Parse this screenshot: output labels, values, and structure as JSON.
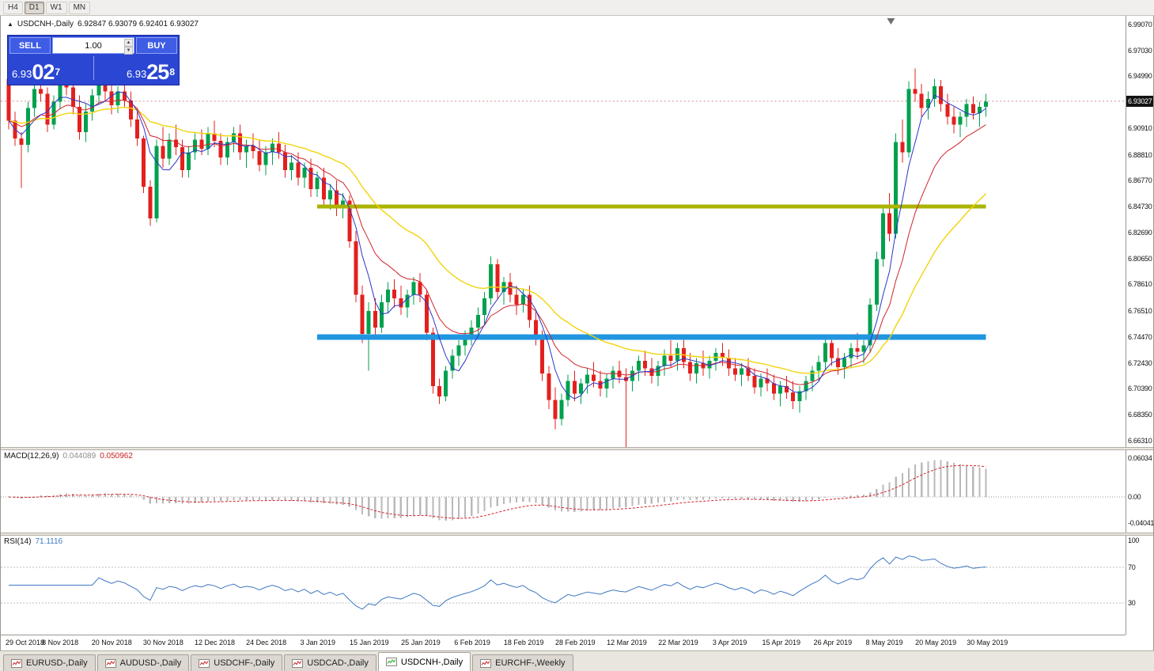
{
  "toolbar": {
    "timeframes": [
      "H4",
      "D1",
      "W1",
      "MN"
    ],
    "active_timeframe": "D1"
  },
  "chart": {
    "title": "USDCNH-,Daily",
    "ohlc": "6.92847 6.93079 6.92401 6.93027",
    "current_price": "6.93027",
    "price_axis_labels": [
      {
        "label": "6.99070",
        "value": 6.9907
      },
      {
        "label": "6.97030",
        "value": 6.9703
      },
      {
        "label": "6.94990",
        "value": 6.9499
      },
      {
        "label": "6.90910",
        "value": 6.9091
      },
      {
        "label": "6.88810",
        "value": 6.8881
      },
      {
        "label": "6.86770",
        "value": 6.8677
      },
      {
        "label": "6.84730",
        "value": 6.8473
      },
      {
        "label": "6.82690",
        "value": 6.8269
      },
      {
        "label": "6.80650",
        "value": 6.8065
      },
      {
        "label": "6.78610",
        "value": 6.7861
      },
      {
        "label": "6.76510",
        "value": 6.7651
      },
      {
        "label": "6.74470",
        "value": 6.7447
      },
      {
        "label": "6.72430",
        "value": 6.7243
      },
      {
        "label": "6.70390",
        "value": 6.7039
      },
      {
        "label": "6.68350",
        "value": 6.6835
      },
      {
        "label": "6.66310",
        "value": 6.6631
      }
    ]
  },
  "trade_panel": {
    "sell_label": "SELL",
    "buy_label": "BUY",
    "volume": "1.00",
    "sell_base": "6.93",
    "sell_pips": "02",
    "sell_point": "7",
    "buy_base": "6.93",
    "buy_pips": "25",
    "buy_point": "8"
  },
  "indicators": {
    "macd": {
      "name": "MACD(12,26,9)",
      "value1": "0.044089",
      "value2": "0.050962",
      "axis": [
        {
          "label": "0.06034",
          "value": 0.06034
        },
        {
          "label": "0.00",
          "value": 0
        },
        {
          "label": "-0.04041",
          "value": -0.04041
        }
      ]
    },
    "rsi": {
      "name": "RSI(14)",
      "value": "71.1116",
      "axis": [
        {
          "label": "100",
          "value": 100
        },
        {
          "label": "70",
          "value": 70
        },
        {
          "label": "30",
          "value": 30
        }
      ],
      "levels": [
        70,
        30
      ]
    }
  },
  "tabs": [
    {
      "label": "EURUSD-,Daily",
      "active": false
    },
    {
      "label": "AUDUSD-,Daily",
      "active": false
    },
    {
      "label": "USDCHF-,Daily",
      "active": false
    },
    {
      "label": "USDCAD-,Daily",
      "active": false
    },
    {
      "label": "USDCNH-,Daily",
      "active": true
    },
    {
      "label": "EURCHF-,Weekly",
      "active": false
    }
  ],
  "chart_data": {
    "type": "candlestick",
    "symbol": "USDCNH-",
    "timeframe": "Daily",
    "price_range": [
      6.658,
      6.9975
    ],
    "macd_range": [
      -0.048,
      0.0655
    ],
    "rsi_range": [
      0,
      100
    ],
    "current_price": 6.93027,
    "date_ticks": [
      {
        "label": "29 Oct 2018",
        "index": 0
      },
      {
        "label": "8 Nov 2018",
        "index": 8
      },
      {
        "label": "20 Nov 2018",
        "index": 16
      },
      {
        "label": "30 Nov 2018",
        "index": 24
      },
      {
        "label": "12 Dec 2018",
        "index": 32
      },
      {
        "label": "24 Dec 2018",
        "index": 40
      },
      {
        "label": "3 Jan 2019",
        "index": 48
      },
      {
        "label": "15 Jan 2019",
        "index": 56
      },
      {
        "label": "25 Jan 2019",
        "index": 64
      },
      {
        "label": "6 Feb 2019",
        "index": 72
      },
      {
        "label": "18 Feb 2019",
        "index": 80
      },
      {
        "label": "28 Feb 2019",
        "index": 88
      },
      {
        "label": "12 Mar 2019",
        "index": 96
      },
      {
        "label": "22 Mar 2019",
        "index": 104
      },
      {
        "label": "3 Apr 2019",
        "index": 112
      },
      {
        "label": "15 Apr 2019",
        "index": 120
      },
      {
        "label": "26 Apr 2019",
        "index": 128
      },
      {
        "label": "8 May 2019",
        "index": 136
      },
      {
        "label": "20 May 2019",
        "index": 144
      },
      {
        "label": "30 May 2019",
        "index": 152
      }
    ],
    "moving_averages": [
      {
        "name": "slow",
        "type": "ema",
        "period": 30,
        "color": "#f2d40b",
        "width": 1.4
      },
      {
        "name": "medium",
        "type": "ema",
        "period": 12,
        "color": "#d2242a",
        "width": 1
      },
      {
        "name": "fast",
        "type": "sma",
        "period": 5,
        "color": "#2b36c9",
        "width": 1
      }
    ],
    "hlines": [
      {
        "price": 6.8473,
        "from_index": 48,
        "to_index": 152,
        "color": "#aab400",
        "width": 5
      },
      {
        "price": 6.7447,
        "from_index": 48,
        "to_index": 152,
        "color": "#2196e0",
        "width": 7
      }
    ],
    "candles": [
      [
        6.948,
        6.952,
        6.908,
        6.915
      ],
      [
        6.915,
        6.922,
        6.895,
        6.901
      ],
      [
        6.901,
        6.906,
        6.862,
        6.896
      ],
      [
        6.896,
        6.93,
        6.89,
        6.925
      ],
      [
        6.925,
        6.945,
        6.918,
        6.94
      ],
      [
        6.94,
        6.955,
        6.93,
        6.936
      ],
      [
        6.936,
        6.941,
        6.906,
        6.912
      ],
      [
        6.912,
        6.935,
        6.908,
        6.93
      ],
      [
        6.93,
        6.952,
        6.924,
        6.948
      ],
      [
        6.948,
        6.958,
        6.935,
        6.941
      ],
      [
        6.941,
        6.95,
        6.92,
        6.926
      ],
      [
        6.926,
        6.935,
        6.9,
        6.906
      ],
      [
        6.906,
        6.928,
        6.898,
        6.922
      ],
      [
        6.922,
        6.94,
        6.915,
        6.935
      ],
      [
        6.935,
        6.955,
        6.928,
        6.95
      ],
      [
        6.95,
        6.957,
        6.93,
        6.938
      ],
      [
        6.938,
        6.945,
        6.92,
        6.927
      ],
      [
        6.927,
        6.942,
        6.921,
        6.938
      ],
      [
        6.938,
        6.948,
        6.925,
        6.931
      ],
      [
        6.931,
        6.938,
        6.91,
        6.916
      ],
      [
        6.916,
        6.925,
        6.895,
        6.901
      ],
      [
        6.901,
        6.903,
        6.858,
        6.863
      ],
      [
        6.863,
        6.868,
        6.832,
        6.838
      ],
      [
        6.838,
        6.9,
        6.835,
        6.895
      ],
      [
        6.895,
        6.91,
        6.878,
        6.885
      ],
      [
        6.885,
        6.905,
        6.88,
        6.9
      ],
      [
        6.9,
        6.912,
        6.888,
        6.894
      ],
      [
        6.894,
        6.9,
        6.87,
        6.876
      ],
      [
        6.876,
        6.895,
        6.87,
        6.89
      ],
      [
        6.89,
        6.905,
        6.884,
        6.9
      ],
      [
        6.9,
        6.908,
        6.888,
        6.893
      ],
      [
        6.893,
        6.91,
        6.888,
        6.905
      ],
      [
        6.905,
        6.915,
        6.894,
        6.899
      ],
      [
        6.899,
        6.905,
        6.88,
        6.886
      ],
      [
        6.886,
        6.902,
        6.88,
        6.898
      ],
      [
        6.898,
        6.91,
        6.89,
        6.905
      ],
      [
        6.905,
        6.912,
        6.884,
        6.89
      ],
      [
        6.89,
        6.9,
        6.878,
        6.895
      ],
      [
        6.895,
        6.905,
        6.885,
        6.891
      ],
      [
        6.891,
        6.9,
        6.875,
        6.88
      ],
      [
        6.88,
        6.895,
        6.872,
        6.89
      ],
      [
        6.89,
        6.901,
        6.88,
        6.897
      ],
      [
        6.897,
        6.906,
        6.885,
        6.89
      ],
      [
        6.89,
        6.896,
        6.87,
        6.876
      ],
      [
        6.876,
        6.888,
        6.868,
        6.882
      ],
      [
        6.882,
        6.89,
        6.864,
        6.87
      ],
      [
        6.87,
        6.882,
        6.862,
        6.878
      ],
      [
        6.878,
        6.885,
        6.855,
        6.861
      ],
      [
        6.861,
        6.875,
        6.855,
        6.87
      ],
      [
        6.87,
        6.878,
        6.848,
        6.853
      ],
      [
        6.853,
        6.865,
        6.845,
        6.86
      ],
      [
        6.86,
        6.868,
        6.84,
        6.846
      ],
      [
        6.846,
        6.858,
        6.838,
        6.852
      ],
      [
        6.852,
        6.856,
        6.815,
        6.82
      ],
      [
        6.82,
        6.828,
        6.772,
        6.778
      ],
      [
        6.778,
        6.785,
        6.74,
        6.747
      ],
      [
        6.747,
        6.772,
        6.718,
        6.765
      ],
      [
        6.765,
        6.775,
        6.744,
        6.752
      ],
      [
        6.752,
        6.778,
        6.748,
        6.772
      ],
      [
        6.772,
        6.788,
        6.764,
        6.782
      ],
      [
        6.782,
        6.79,
        6.768,
        6.775
      ],
      [
        6.775,
        6.785,
        6.762,
        6.768
      ],
      [
        6.768,
        6.782,
        6.76,
        6.778
      ],
      [
        6.778,
        6.792,
        6.77,
        6.788
      ],
      [
        6.788,
        6.795,
        6.772,
        6.778
      ],
      [
        6.778,
        6.782,
        6.742,
        6.748
      ],
      [
        6.748,
        6.752,
        6.7,
        6.706
      ],
      [
        6.706,
        6.712,
        6.692,
        6.698
      ],
      [
        6.698,
        6.722,
        6.694,
        6.718
      ],
      [
        6.718,
        6.735,
        6.712,
        6.73
      ],
      [
        6.73,
        6.742,
        6.722,
        6.738
      ],
      [
        6.738,
        6.75,
        6.73,
        6.745
      ],
      [
        6.745,
        6.758,
        6.738,
        6.752
      ],
      [
        6.752,
        6.768,
        6.744,
        6.762
      ],
      [
        6.762,
        6.78,
        6.755,
        6.775
      ],
      [
        6.775,
        6.808,
        6.77,
        6.802
      ],
      [
        6.802,
        6.806,
        6.774,
        6.78
      ],
      [
        6.78,
        6.792,
        6.77,
        6.788
      ],
      [
        6.788,
        6.795,
        6.772,
        6.778
      ],
      [
        6.778,
        6.785,
        6.762,
        6.77
      ],
      [
        6.77,
        6.782,
        6.764,
        6.778
      ],
      [
        6.778,
        6.785,
        6.752,
        6.758
      ],
      [
        6.758,
        6.765,
        6.738,
        6.745
      ],
      [
        6.745,
        6.75,
        6.71,
        6.716
      ],
      [
        6.716,
        6.722,
        6.688,
        6.695
      ],
      [
        6.695,
        6.705,
        6.672,
        6.68
      ],
      [
        6.68,
        6.7,
        6.675,
        6.695
      ],
      [
        6.695,
        6.715,
        6.69,
        6.71
      ],
      [
        6.71,
        6.718,
        6.694,
        6.7
      ],
      [
        6.7,
        6.712,
        6.692,
        6.708
      ],
      [
        6.708,
        6.72,
        6.7,
        6.715
      ],
      [
        6.715,
        6.725,
        6.705,
        6.71
      ],
      [
        6.71,
        6.718,
        6.698,
        6.704
      ],
      [
        6.704,
        6.716,
        6.697,
        6.712
      ],
      [
        6.712,
        6.722,
        6.704,
        6.718
      ],
      [
        6.718,
        6.726,
        6.708,
        6.713
      ],
      [
        6.713,
        6.72,
        6.655,
        6.71
      ],
      [
        6.71,
        6.722,
        6.702,
        6.718
      ],
      [
        6.718,
        6.73,
        6.71,
        6.726
      ],
      [
        6.726,
        6.734,
        6.714,
        6.72
      ],
      [
        6.72,
        6.728,
        6.708,
        6.714
      ],
      [
        6.714,
        6.726,
        6.706,
        6.722
      ],
      [
        6.722,
        6.735,
        6.714,
        6.73
      ],
      [
        6.73,
        6.742,
        6.721,
        6.726
      ],
      [
        6.726,
        6.74,
        6.718,
        6.736
      ],
      [
        6.736,
        6.744,
        6.72,
        6.725
      ],
      [
        6.725,
        6.732,
        6.71,
        6.716
      ],
      [
        6.716,
        6.728,
        6.708,
        6.724
      ],
      [
        6.724,
        6.734,
        6.714,
        6.72
      ],
      [
        6.72,
        6.73,
        6.712,
        6.726
      ],
      [
        6.726,
        6.736,
        6.718,
        6.732
      ],
      [
        6.732,
        6.74,
        6.722,
        6.728
      ],
      [
        6.728,
        6.735,
        6.714,
        6.72
      ],
      [
        6.72,
        6.728,
        6.71,
        6.715
      ],
      [
        6.715,
        6.724,
        6.706,
        6.72
      ],
      [
        6.72,
        6.728,
        6.71,
        6.714
      ],
      [
        6.714,
        6.72,
        6.7,
        6.705
      ],
      [
        6.705,
        6.716,
        6.698,
        6.712
      ],
      [
        6.712,
        6.72,
        6.702,
        6.708
      ],
      [
        6.708,
        6.715,
        6.695,
        6.7
      ],
      [
        6.7,
        6.71,
        6.69,
        6.706
      ],
      [
        6.706,
        6.714,
        6.696,
        6.701
      ],
      [
        6.701,
        6.71,
        6.688,
        6.694
      ],
      [
        6.694,
        6.706,
        6.685,
        6.702
      ],
      [
        6.702,
        6.714,
        6.695,
        6.71
      ],
      [
        6.71,
        6.722,
        6.702,
        6.718
      ],
      [
        6.718,
        6.73,
        6.71,
        6.725
      ],
      [
        6.725,
        6.745,
        6.718,
        6.74
      ],
      [
        6.74,
        6.746,
        6.722,
        6.728
      ],
      [
        6.728,
        6.736,
        6.715,
        6.721
      ],
      [
        6.721,
        6.732,
        6.712,
        6.728
      ],
      [
        6.728,
        6.74,
        6.72,
        6.736
      ],
      [
        6.736,
        6.748,
        6.727,
        6.733
      ],
      [
        6.733,
        6.742,
        6.724,
        6.738
      ],
      [
        6.738,
        6.775,
        6.732,
        6.77
      ],
      [
        6.77,
        6.812,
        6.765,
        6.806
      ],
      [
        6.806,
        6.848,
        6.8,
        6.842
      ],
      [
        6.842,
        6.858,
        6.82,
        6.826
      ],
      [
        6.826,
        6.905,
        6.822,
        6.898
      ],
      [
        6.898,
        6.916,
        6.882,
        6.89
      ],
      [
        6.89,
        6.946,
        6.886,
        6.94
      ],
      [
        6.94,
        6.956,
        6.93,
        6.936
      ],
      [
        6.936,
        6.944,
        6.918,
        6.925
      ],
      [
        6.925,
        6.938,
        6.916,
        6.932
      ],
      [
        6.932,
        6.948,
        6.926,
        6.942
      ],
      [
        6.942,
        6.947,
        6.922,
        6.928
      ],
      [
        6.928,
        6.936,
        6.912,
        6.918
      ],
      [
        6.918,
        6.926,
        6.905,
        6.912
      ],
      [
        6.912,
        6.922,
        6.902,
        6.918
      ],
      [
        6.918,
        6.932,
        6.91,
        6.928
      ],
      [
        6.928,
        6.934,
        6.916,
        6.921
      ],
      [
        6.921,
        6.93,
        6.91,
        6.926
      ],
      [
        6.926,
        6.936,
        6.918,
        6.93
      ]
    ]
  }
}
